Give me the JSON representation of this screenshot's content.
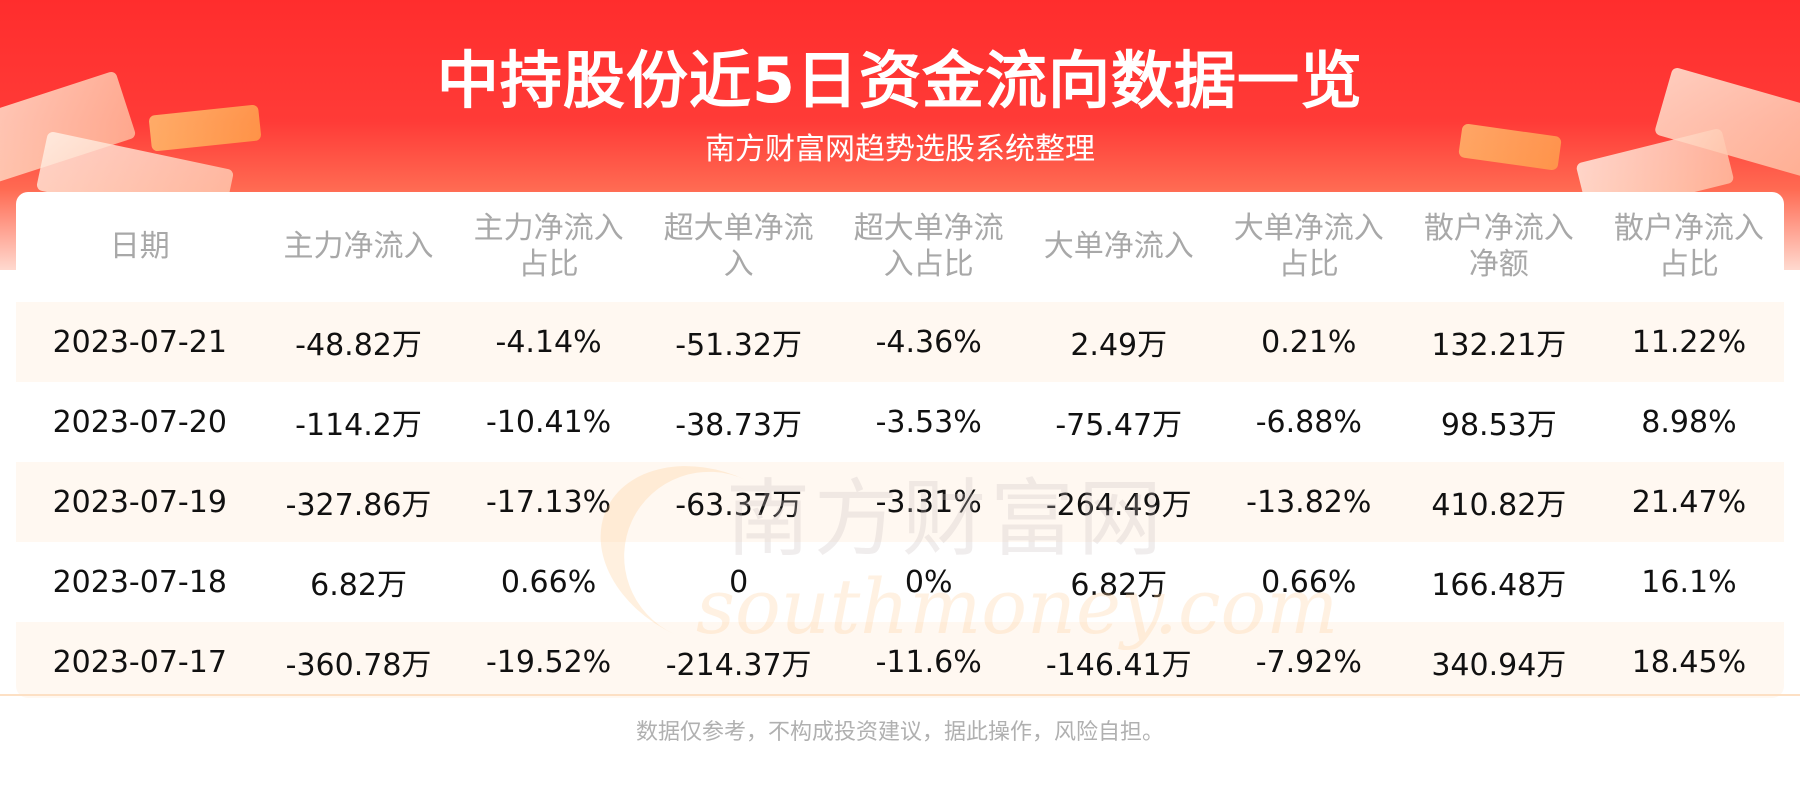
{
  "header": {
    "title": "中持股份近5日资金流向数据一览",
    "subtitle": "南方财富网趋势选股系统整理"
  },
  "watermark": {
    "cn": "南方财富网",
    "en": "southmoney.com"
  },
  "table": {
    "columns": [
      {
        "line1": "日期",
        "line2": ""
      },
      {
        "line1": "主力净流入",
        "line2": ""
      },
      {
        "line1": "主力净流入",
        "line2": "占比"
      },
      {
        "line1": "超大单净流",
        "line2": "入"
      },
      {
        "line1": "超大单净流",
        "line2": "入占比"
      },
      {
        "line1": "大单净流入",
        "line2": ""
      },
      {
        "line1": "大单净流入",
        "line2": "占比"
      },
      {
        "line1": "散户净流入",
        "line2": "净额"
      },
      {
        "line1": "散户净流入",
        "line2": "占比"
      }
    ],
    "rows": [
      [
        "2023-07-21",
        "-48.82万",
        "-4.14%",
        "-51.32万",
        "-4.36%",
        "2.49万",
        "0.21%",
        "132.21万",
        "11.22%"
      ],
      [
        "2023-07-20",
        "-114.2万",
        "-10.41%",
        "-38.73万",
        "-3.53%",
        "-75.47万",
        "-6.88%",
        "98.53万",
        "8.98%"
      ],
      [
        "2023-07-19",
        "-327.86万",
        "-17.13%",
        "-63.37万",
        "-3.31%",
        "-264.49万",
        "-13.82%",
        "410.82万",
        "21.47%"
      ],
      [
        "2023-07-18",
        "6.82万",
        "0.66%",
        "0",
        "0%",
        "6.82万",
        "0.66%",
        "166.48万",
        "16.1%"
      ],
      [
        "2023-07-17",
        "-360.78万",
        "-19.52%",
        "-214.37万",
        "-11.6%",
        "-146.41万",
        "-7.92%",
        "340.94万",
        "18.45%"
      ]
    ]
  },
  "footer": {
    "disclaimer": "数据仅参考，不构成投资建议，据此操作，风险自担。"
  },
  "colors": {
    "banner_red": "#ff2d2d",
    "row_tint": "#fff8f1",
    "header_text": "#a8a8a8"
  }
}
